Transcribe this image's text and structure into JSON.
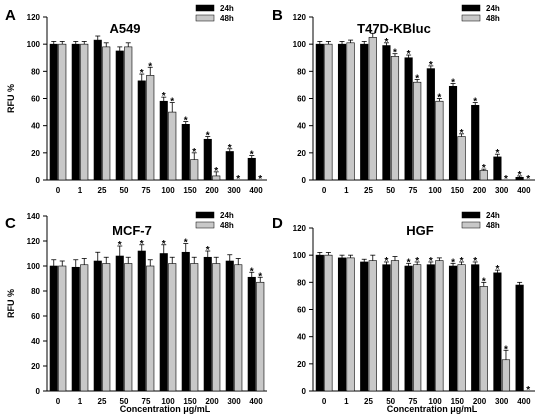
{
  "colors": {
    "h24": "#000000",
    "h48": "#c8c8c8",
    "axis": "#000000"
  },
  "chart_data": [
    {
      "type": "bar",
      "panel_label": "A",
      "title": "A549",
      "ylabel": "RFU %",
      "xlabel": "",
      "ylim": [
        0,
        120
      ],
      "yticks": [
        0,
        20,
        40,
        60,
        80,
        100,
        120
      ],
      "grid": false,
      "legend_position": "top-right",
      "categories": [
        "0",
        "1",
        "25",
        "50",
        "75",
        "100",
        "150",
        "200",
        "300",
        "400"
      ],
      "series": [
        {
          "name": "24h",
          "values": [
            100,
            100,
            103,
            95,
            73,
            58,
            41,
            30,
            21,
            16
          ],
          "errors": [
            2,
            2,
            3,
            3,
            5,
            3,
            2,
            2,
            2,
            2
          ],
          "significant": [
            false,
            false,
            false,
            false,
            true,
            true,
            true,
            true,
            true,
            true
          ]
        },
        {
          "name": "48h",
          "values": [
            100,
            100,
            98,
            98,
            77,
            50,
            15,
            3,
            0,
            0
          ],
          "errors": [
            2,
            2,
            3,
            3,
            6,
            7,
            5,
            3,
            0,
            0
          ],
          "significant": [
            false,
            false,
            false,
            false,
            true,
            true,
            true,
            true,
            true,
            true
          ]
        }
      ]
    },
    {
      "type": "bar",
      "panel_label": "B",
      "title": "T47D-KBluc",
      "ylabel": "",
      "xlabel": "",
      "ylim": [
        0,
        120
      ],
      "yticks": [
        0,
        20,
        40,
        60,
        80,
        100,
        120
      ],
      "grid": false,
      "legend_position": "top-right",
      "categories": [
        "0",
        "1",
        "25",
        "50",
        "75",
        "100",
        "150",
        "200",
        "300",
        "400"
      ],
      "series": [
        {
          "name": "24h",
          "values": [
            100,
            100,
            100,
            99,
            90,
            82,
            69,
            55,
            17,
            2
          ],
          "errors": [
            2,
            2,
            2,
            2,
            2,
            2,
            2,
            2,
            2,
            1
          ],
          "significant": [
            false,
            false,
            false,
            true,
            true,
            true,
            true,
            true,
            true,
            true
          ]
        },
        {
          "name": "48h",
          "values": [
            100,
            101,
            105,
            91,
            72,
            58,
            32,
            7,
            0,
            0
          ],
          "errors": [
            2,
            2,
            3,
            2,
            2,
            2,
            2,
            1,
            0,
            0
          ],
          "significant": [
            false,
            false,
            false,
            true,
            true,
            true,
            true,
            true,
            true,
            true
          ]
        }
      ]
    },
    {
      "type": "bar",
      "panel_label": "C",
      "title": "MCF-7",
      "ylabel": "RFU %",
      "xlabel": "Concentration  μg/mL",
      "ylim": [
        0,
        140
      ],
      "yticks": [
        0,
        20,
        40,
        60,
        80,
        100,
        120,
        140
      ],
      "grid": false,
      "legend_position": "top-right",
      "categories": [
        "0",
        "1",
        "25",
        "50",
        "75",
        "100",
        "150",
        "200",
        "300",
        "400"
      ],
      "series": [
        {
          "name": "24h",
          "values": [
            100,
            99,
            104,
            108,
            112,
            110,
            111,
            107,
            104,
            91
          ],
          "errors": [
            5,
            6,
            7,
            8,
            5,
            7,
            7,
            5,
            5,
            4
          ],
          "significant": [
            false,
            false,
            false,
            true,
            true,
            true,
            true,
            true,
            false,
            true
          ]
        },
        {
          "name": "48h",
          "values": [
            100,
            101,
            102,
            102,
            100,
            102,
            102,
            102,
            101,
            87
          ],
          "errors": [
            4,
            5,
            5,
            5,
            5,
            5,
            5,
            5,
            5,
            4
          ],
          "significant": [
            false,
            false,
            false,
            false,
            false,
            false,
            false,
            false,
            false,
            true
          ]
        }
      ]
    },
    {
      "type": "bar",
      "panel_label": "D",
      "title": "HGF",
      "ylabel": "",
      "xlabel": "Concentration  μg/mL",
      "ylim": [
        0,
        120
      ],
      "yticks": [
        0,
        20,
        40,
        60,
        80,
        100,
        120
      ],
      "grid": false,
      "legend_position": "top-right",
      "categories": [
        "0",
        "1",
        "25",
        "50",
        "75",
        "100",
        "150",
        "200",
        "300",
        "400"
      ],
      "series": [
        {
          "name": "24h",
          "values": [
            100,
            98,
            95,
            93,
            92,
            93,
            92,
            93,
            87,
            78
          ],
          "errors": [
            2,
            2,
            2,
            2,
            2,
            2,
            2,
            2,
            2,
            2
          ],
          "significant": [
            false,
            false,
            false,
            true,
            true,
            true,
            true,
            true,
            true,
            false
          ]
        },
        {
          "name": "48h",
          "values": [
            100,
            98,
            96,
            96,
            93,
            96,
            93,
            77,
            23,
            0
          ],
          "errors": [
            2,
            2,
            4,
            3,
            2,
            2,
            2,
            3,
            7,
            0
          ],
          "significant": [
            false,
            false,
            false,
            false,
            true,
            false,
            true,
            true,
            true,
            true
          ]
        }
      ]
    }
  ]
}
